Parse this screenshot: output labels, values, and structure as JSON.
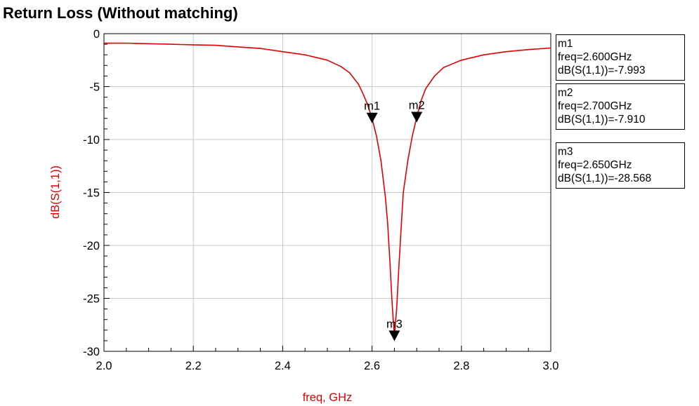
{
  "chart_data": {
    "type": "line",
    "title": "Return Loss (Without matching)",
    "xlabel": "freq, GHz",
    "ylabel": "dB(S(1,1))",
    "xlim": [
      2.0,
      3.0
    ],
    "ylim": [
      -30,
      0
    ],
    "x_ticks": [
      "2.0",
      "2.2",
      "2.4",
      "2.6",
      "2.8",
      "3.0"
    ],
    "y_ticks": [
      "0",
      "-5",
      "-10",
      "-15",
      "-20",
      "-25",
      "-30"
    ],
    "grid": true,
    "line_color": "#e00000",
    "series": [
      {
        "x": [
          2.0,
          2.05,
          2.1,
          2.15,
          2.2,
          2.25,
          2.3,
          2.35,
          2.4,
          2.45,
          2.5,
          2.53,
          2.55,
          2.57,
          2.58,
          2.59,
          2.6,
          2.61,
          2.62,
          2.63,
          2.635,
          2.64,
          2.645,
          2.65,
          2.655,
          2.66,
          2.665,
          2.67,
          2.68,
          2.69,
          2.7,
          2.71,
          2.72,
          2.74,
          2.76,
          2.8,
          2.85,
          2.9,
          2.95,
          3.0
        ],
        "y": [
          -0.9,
          -0.9,
          -0.95,
          -1.0,
          -1.05,
          -1.1,
          -1.25,
          -1.4,
          -1.7,
          -2.0,
          -2.5,
          -3.1,
          -3.7,
          -4.8,
          -5.7,
          -6.7,
          -8.0,
          -9.7,
          -12.0,
          -15.5,
          -18.0,
          -21.5,
          -25.5,
          -28.6,
          -26.0,
          -22.0,
          -18.5,
          -15.0,
          -12.0,
          -9.7,
          -7.9,
          -6.3,
          -5.2,
          -4.0,
          -3.2,
          -2.5,
          -2.0,
          -1.7,
          -1.5,
          -1.35
        ]
      }
    ],
    "markers": [
      {
        "name": "m1",
        "freq": 2.6,
        "db": -7.993,
        "lines": [
          "m1",
          "freq=2.600GHz",
          "dB(S(1,1))=-7.993"
        ]
      },
      {
        "name": "m2",
        "freq": 2.7,
        "db": -7.91,
        "lines": [
          "m2",
          "freq=2.700GHz",
          "dB(S(1,1))=-7.910"
        ]
      },
      {
        "name": "m3",
        "freq": 2.65,
        "db": -28.568,
        "lines": [
          "m3",
          "freq=2.650GHz",
          "dB(S(1,1))=-28.568"
        ]
      }
    ]
  }
}
